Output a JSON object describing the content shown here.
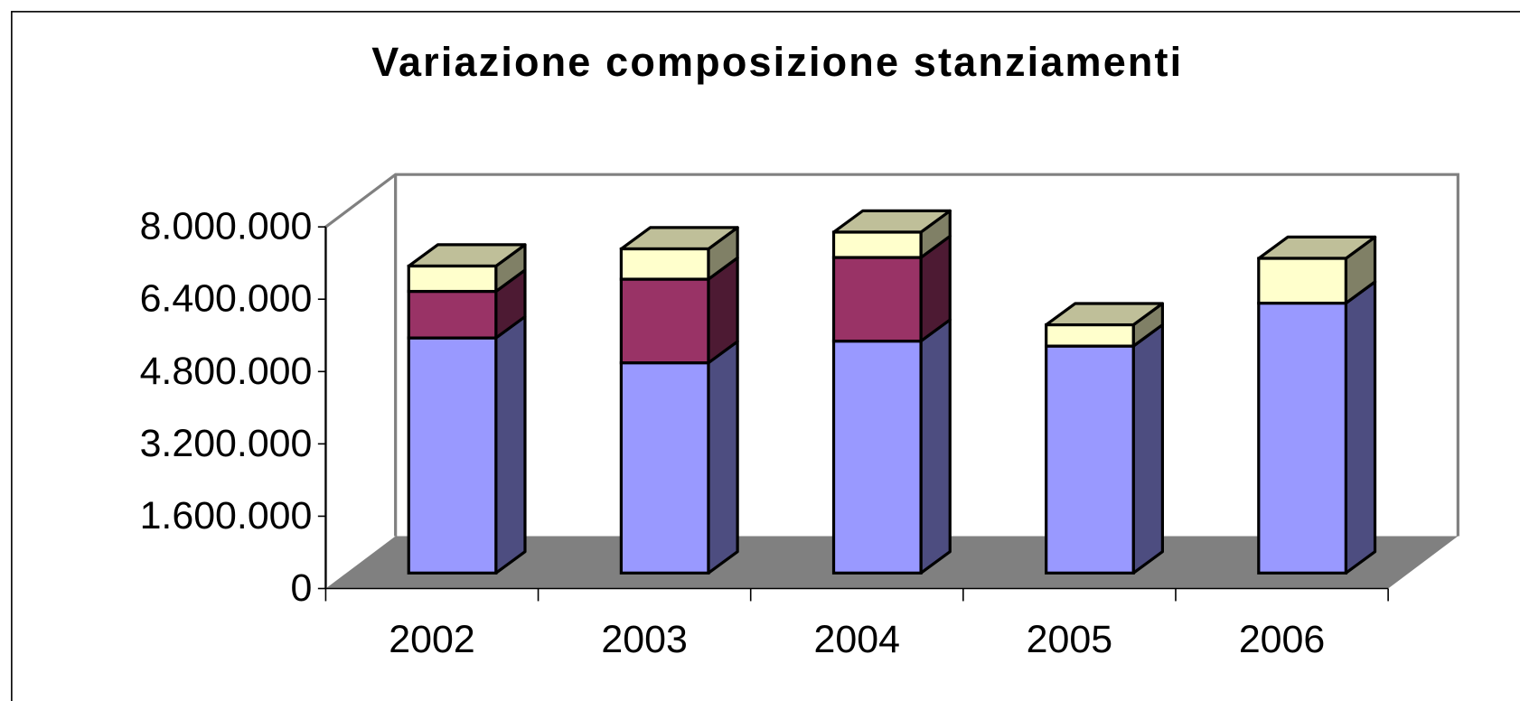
{
  "chart_data": {
    "type": "bar3d_stacked",
    "title": "Variazione composizione stanziamenti",
    "categories": [
      "2002",
      "2003",
      "2004",
      "2005",
      "2006"
    ],
    "series": [
      {
        "color": "#9999ff",
        "values": [
          5200000,
          4650000,
          5130000,
          5020000,
          5970000
        ]
      },
      {
        "color": "#993366",
        "values": [
          1030000,
          1850000,
          1850000,
          0,
          0
        ]
      },
      {
        "color": "#ffffcc",
        "values": [
          560000,
          670000,
          560000,
          470000,
          990000
        ]
      }
    ],
    "ylim": [
      0,
      8000000
    ],
    "yticks": [
      {
        "value": 0,
        "label": "0"
      },
      {
        "value": 1600000,
        "label": "1.600.000"
      },
      {
        "value": 3200000,
        "label": "3.200.000"
      },
      {
        "value": 4800000,
        "label": "4.800.000"
      },
      {
        "value": 6400000,
        "label": "6.400.000"
      },
      {
        "value": 8000000,
        "label": "8.000.000"
      }
    ]
  }
}
